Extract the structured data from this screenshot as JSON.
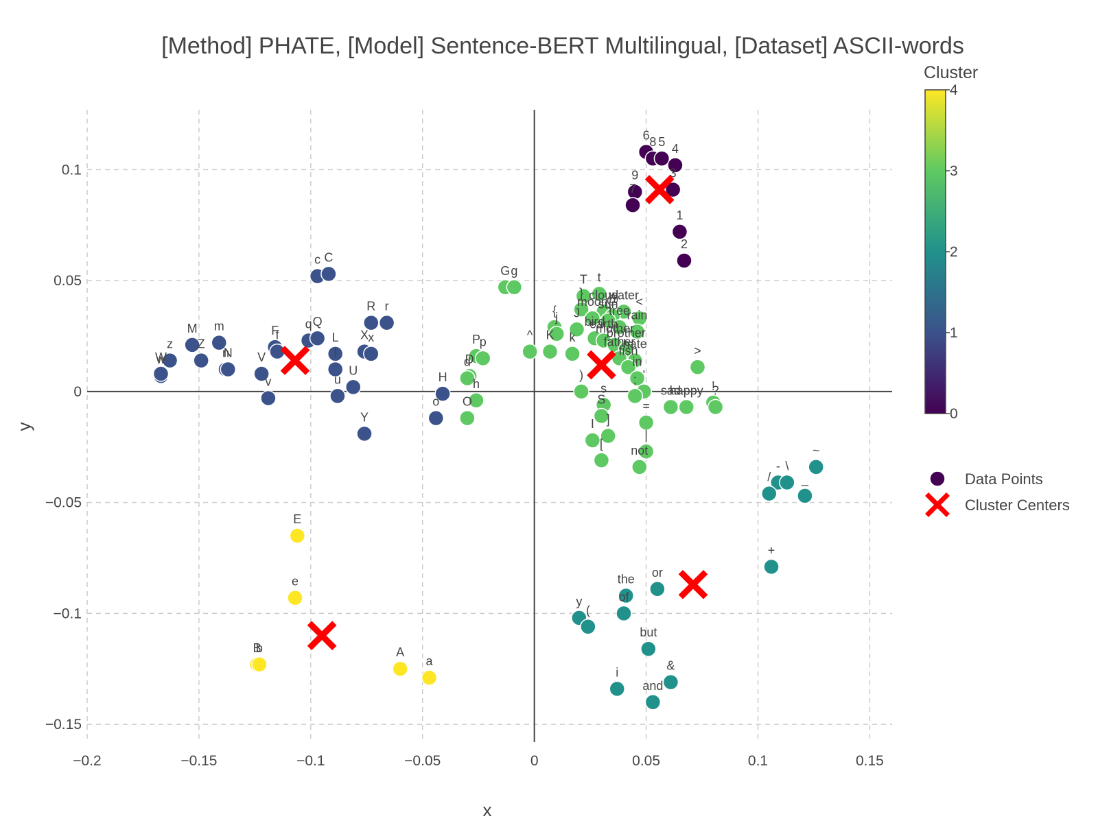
{
  "chart_data": {
    "type": "scatter",
    "title": "[Method] PHATE, [Model] Sentence-BERT Multilingual, [Dataset] ASCII-words",
    "xlabel": "x",
    "ylabel": "y",
    "xlim": [
      -0.2,
      0.16
    ],
    "ylim": [
      -0.158,
      0.127
    ],
    "xticks": [
      -0.2,
      -0.15,
      -0.1,
      -0.05,
      0,
      0.05,
      0.1,
      0.15
    ],
    "xtick_labels": [
      "−0.2",
      "−0.15",
      "−0.1",
      "−0.05",
      "0",
      "0.05",
      "0.1",
      "0.15"
    ],
    "yticks": [
      -0.15,
      -0.1,
      -0.05,
      0,
      0.05,
      0.1
    ],
    "ytick_labels": [
      "−0.15",
      "−0.1",
      "−0.05",
      "0",
      "0.05",
      "0.1"
    ],
    "grid": true,
    "legend": {
      "position": "right",
      "entries": [
        "Data Points",
        "Cluster Centers"
      ]
    },
    "colorbar": {
      "title": "Cluster",
      "min": 0,
      "max": 4,
      "ticks": [
        "0",
        "1",
        "2",
        "3",
        "4"
      ],
      "colormap": [
        "#440154",
        "#3b528b",
        "#21918c",
        "#5ec962",
        "#fde725"
      ]
    },
    "series": [
      {
        "name": "Data Points",
        "points": [
          {
            "x": 0.05,
            "y": 0.108,
            "label": "6",
            "cluster": 0
          },
          {
            "x": 0.053,
            "y": 0.105,
            "label": "8",
            "cluster": 0
          },
          {
            "x": 0.057,
            "y": 0.105,
            "label": "5",
            "cluster": 0
          },
          {
            "x": 0.063,
            "y": 0.102,
            "label": "4",
            "cluster": 0
          },
          {
            "x": 0.045,
            "y": 0.09,
            "label": "9",
            "cluster": 0
          },
          {
            "x": 0.062,
            "y": 0.091,
            "label": "3",
            "cluster": 0
          },
          {
            "x": 0.044,
            "y": 0.084,
            "label": "7",
            "cluster": 0
          },
          {
            "x": 0.065,
            "y": 0.072,
            "label": "1",
            "cluster": 0
          },
          {
            "x": 0.067,
            "y": 0.059,
            "label": "2",
            "cluster": 0
          },
          {
            "x": -0.097,
            "y": 0.052,
            "label": "c",
            "cluster": 1
          },
          {
            "x": -0.092,
            "y": 0.053,
            "label": "C",
            "cluster": 1
          },
          {
            "x": -0.073,
            "y": 0.031,
            "label": "R",
            "cluster": 1
          },
          {
            "x": -0.066,
            "y": 0.031,
            "label": "r",
            "cluster": 1
          },
          {
            "x": -0.153,
            "y": 0.021,
            "label": "M",
            "cluster": 1
          },
          {
            "x": -0.141,
            "y": 0.022,
            "label": "m",
            "cluster": 1
          },
          {
            "x": -0.163,
            "y": 0.014,
            "label": "z",
            "cluster": 1
          },
          {
            "x": -0.149,
            "y": 0.014,
            "label": "Z",
            "cluster": 1
          },
          {
            "x": -0.167,
            "y": 0.007,
            "label": "w",
            "cluster": 1
          },
          {
            "x": -0.167,
            "y": 0.008,
            "label": "W",
            "cluster": 1
          },
          {
            "x": -0.138,
            "y": 0.01,
            "label": "n",
            "cluster": 1
          },
          {
            "x": -0.137,
            "y": 0.01,
            "label": "N",
            "cluster": 1
          },
          {
            "x": -0.116,
            "y": 0.02,
            "label": "F",
            "cluster": 1
          },
          {
            "x": -0.115,
            "y": 0.018,
            "label": "f",
            "cluster": 1
          },
          {
            "x": -0.101,
            "y": 0.023,
            "label": "q",
            "cluster": 1
          },
          {
            "x": -0.097,
            "y": 0.024,
            "label": "Q",
            "cluster": 1
          },
          {
            "x": -0.122,
            "y": 0.008,
            "label": "V",
            "cluster": 1
          },
          {
            "x": -0.119,
            "y": -0.003,
            "label": "v",
            "cluster": 1
          },
          {
            "x": -0.089,
            "y": 0.017,
            "label": "L",
            "cluster": 1
          },
          {
            "x": -0.089,
            "y": 0.01,
            "label": "l",
            "cluster": 1
          },
          {
            "x": -0.076,
            "y": 0.018,
            "label": "X",
            "cluster": 1
          },
          {
            "x": -0.073,
            "y": 0.017,
            "label": "x",
            "cluster": 1
          },
          {
            "x": -0.081,
            "y": 0.002,
            "label": "U",
            "cluster": 1
          },
          {
            "x": -0.088,
            "y": -0.002,
            "label": "u",
            "cluster": 1
          },
          {
            "x": -0.076,
            "y": -0.019,
            "label": "Y",
            "cluster": 1
          },
          {
            "x": -0.041,
            "y": -0.001,
            "label": "H",
            "cluster": 1
          },
          {
            "x": -0.044,
            "y": -0.012,
            "label": "o",
            "cluster": 1
          },
          {
            "x": 0.126,
            "y": -0.034,
            "label": "~",
            "cluster": 2
          },
          {
            "x": 0.109,
            "y": -0.041,
            "label": "-",
            "cluster": 2
          },
          {
            "x": 0.113,
            "y": -0.041,
            "label": "\\",
            "cluster": 2
          },
          {
            "x": 0.105,
            "y": -0.046,
            "label": "/",
            "cluster": 2
          },
          {
            "x": 0.121,
            "y": -0.047,
            "label": "_",
            "cluster": 2
          },
          {
            "x": 0.106,
            "y": -0.079,
            "label": "+",
            "cluster": 2
          },
          {
            "x": 0.055,
            "y": -0.089,
            "label": "or",
            "cluster": 2
          },
          {
            "x": 0.041,
            "y": -0.092,
            "label": "the",
            "cluster": 2
          },
          {
            "x": 0.04,
            "y": -0.1,
            "label": "of",
            "cluster": 2
          },
          {
            "x": 0.02,
            "y": -0.102,
            "label": "y",
            "cluster": 2
          },
          {
            "x": 0.024,
            "y": -0.106,
            "label": "(",
            "cluster": 2
          },
          {
            "x": 0.051,
            "y": -0.116,
            "label": "but",
            "cluster": 2
          },
          {
            "x": 0.061,
            "y": -0.131,
            "label": "&",
            "cluster": 2
          },
          {
            "x": 0.037,
            "y": -0.134,
            "label": "i",
            "cluster": 2
          },
          {
            "x": 0.053,
            "y": -0.14,
            "label": "and",
            "cluster": 2
          },
          {
            "x": -0.013,
            "y": 0.047,
            "label": "G",
            "cluster": 3
          },
          {
            "x": -0.009,
            "y": 0.047,
            "label": "g",
            "cluster": 3
          },
          {
            "x": 0.022,
            "y": 0.043,
            "label": "T",
            "cluster": 3
          },
          {
            "x": 0.029,
            "y": 0.044,
            "label": "t",
            "cluster": 3
          },
          {
            "x": 0.021,
            "y": 0.037,
            "label": "}",
            "cluster": 3
          },
          {
            "x": 0.031,
            "y": 0.036,
            "label": "cloud",
            "cluster": 3
          },
          {
            "x": 0.04,
            "y": 0.036,
            "label": "water",
            "cluster": 3
          },
          {
            "x": 0.035,
            "y": 0.034,
            "label": "@",
            "cluster": 3
          },
          {
            "x": 0.047,
            "y": 0.033,
            "label": "<",
            "cluster": 3
          },
          {
            "x": 0.009,
            "y": 0.029,
            "label": "{",
            "cluster": 3
          },
          {
            "x": 0.01,
            "y": 0.026,
            "label": "j",
            "cluster": 3
          },
          {
            "x": 0.019,
            "y": 0.028,
            "label": "J",
            "cluster": 3
          },
          {
            "x": 0.026,
            "y": 0.033,
            "label": "moon",
            "cluster": 3
          },
          {
            "x": 0.033,
            "y": 0.032,
            "label": "sun",
            "cluster": 3
          },
          {
            "x": 0.038,
            "y": 0.029,
            "label": "tree",
            "cluster": 3
          },
          {
            "x": 0.046,
            "y": 0.027,
            "label": "rain",
            "cluster": 3
          },
          {
            "x": 0.007,
            "y": 0.018,
            "label": "K",
            "cluster": 3
          },
          {
            "x": -0.002,
            "y": 0.018,
            "label": "^",
            "cluster": 3
          },
          {
            "x": 0.017,
            "y": 0.017,
            "label": "k",
            "cluster": 3
          },
          {
            "x": 0.027,
            "y": 0.024,
            "label": "bird",
            "cluster": 3
          },
          {
            "x": 0.031,
            "y": 0.023,
            "label": "earth",
            "cluster": 3
          },
          {
            "x": 0.036,
            "y": 0.021,
            "label": "mother",
            "cluster": 3
          },
          {
            "x": 0.041,
            "y": 0.019,
            "label": "brother",
            "cluster": 3
          },
          {
            "x": 0.038,
            "y": 0.015,
            "label": "father",
            "cluster": 3
          },
          {
            "x": 0.045,
            "y": 0.014,
            "label": "hate",
            "cluster": 3
          },
          {
            "x": 0.042,
            "y": 0.011,
            "label": "fish",
            "cluster": 3
          },
          {
            "x": 0.046,
            "y": 0.006,
            "label": "in",
            "cluster": 3
          },
          {
            "x": 0.073,
            "y": 0.011,
            "label": ">",
            "cluster": 3
          },
          {
            "x": -0.026,
            "y": 0.016,
            "label": "P",
            "cluster": 3
          },
          {
            "x": -0.023,
            "y": 0.015,
            "label": "p",
            "cluster": 3
          },
          {
            "x": -0.029,
            "y": 0.007,
            "label": "D",
            "cluster": 3
          },
          {
            "x": -0.03,
            "y": 0.006,
            "label": "d",
            "cluster": 3
          },
          {
            "x": -0.026,
            "y": -0.004,
            "label": "h",
            "cluster": 3
          },
          {
            "x": -0.03,
            "y": -0.012,
            "label": "O",
            "cluster": 3
          },
          {
            "x": 0.021,
            "y": 0.0,
            "label": ")",
            "cluster": 3
          },
          {
            "x": 0.031,
            "y": -0.006,
            "label": "s",
            "cluster": 3
          },
          {
            "x": 0.03,
            "y": -0.011,
            "label": "S",
            "cluster": 3
          },
          {
            "x": 0.026,
            "y": -0.022,
            "label": "I",
            "cluster": 3
          },
          {
            "x": 0.033,
            "y": -0.02,
            "label": "]",
            "cluster": 3
          },
          {
            "x": 0.03,
            "y": -0.031,
            "label": "[",
            "cluster": 3
          },
          {
            "x": 0.049,
            "y": 0.0,
            "label": "'",
            "cluster": 3
          },
          {
            "x": 0.045,
            "y": -0.002,
            "label": ";",
            "cluster": 3
          },
          {
            "x": 0.05,
            "y": -0.014,
            "label": "=",
            "cluster": 3
          },
          {
            "x": 0.05,
            "y": -0.027,
            "label": "|",
            "cluster": 3
          },
          {
            "x": 0.047,
            "y": -0.034,
            "label": "not",
            "cluster": 3
          },
          {
            "x": 0.061,
            "y": -0.007,
            "label": "sad",
            "cluster": 3
          },
          {
            "x": 0.068,
            "y": -0.007,
            "label": "happy",
            "cluster": 3
          },
          {
            "x": 0.08,
            "y": -0.005,
            "label": "!",
            "cluster": 3
          },
          {
            "x": 0.081,
            "y": -0.007,
            "label": "?",
            "cluster": 3
          },
          {
            "x": -0.106,
            "y": -0.065,
            "label": "E",
            "cluster": 4
          },
          {
            "x": -0.107,
            "y": -0.093,
            "label": "e",
            "cluster": 4
          },
          {
            "x": -0.124,
            "y": -0.123,
            "label": "B",
            "cluster": 4
          },
          {
            "x": -0.123,
            "y": -0.123,
            "label": "b",
            "cluster": 4
          },
          {
            "x": -0.06,
            "y": -0.125,
            "label": "A",
            "cluster": 4
          },
          {
            "x": -0.047,
            "y": -0.129,
            "label": "a",
            "cluster": 4
          }
        ]
      },
      {
        "name": "Cluster Centers",
        "points": [
          {
            "x": 0.056,
            "y": 0.091,
            "cluster": 0
          },
          {
            "x": -0.107,
            "y": 0.014,
            "cluster": 1
          },
          {
            "x": 0.071,
            "y": -0.087,
            "cluster": 2
          },
          {
            "x": 0.03,
            "y": 0.012,
            "cluster": 3
          },
          {
            "x": -0.095,
            "y": -0.11,
            "cluster": 4
          }
        ]
      }
    ]
  }
}
